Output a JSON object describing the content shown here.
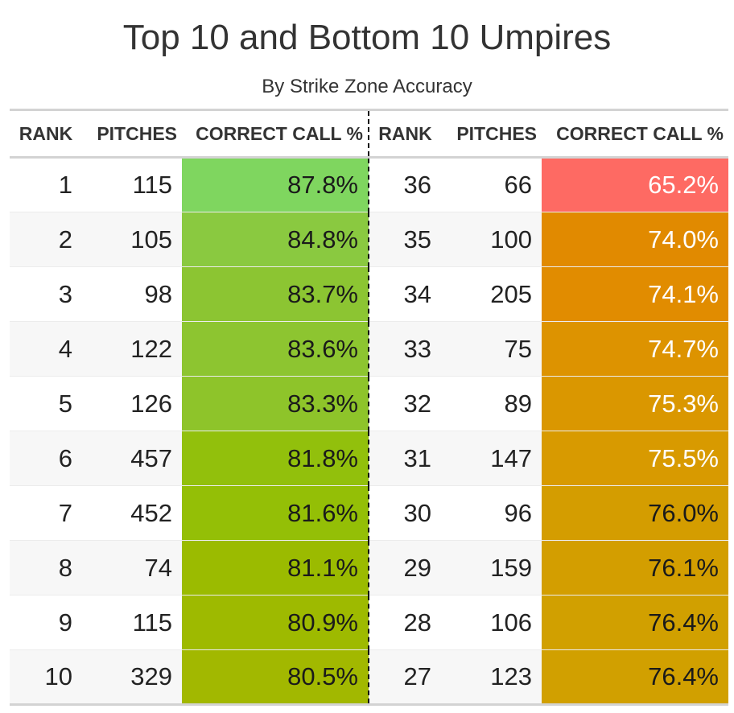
{
  "chart_data": {
    "type": "table",
    "title": "Top 10 and Bottom 10 Umpires",
    "subtitle": "By Strike Zone Accuracy",
    "columns": [
      "RANK",
      "PITCHES",
      "CORRECT CALL %",
      "RANK",
      "PITCHES",
      "CORRECT CALL %"
    ],
    "rows": [
      {
        "top": {
          "rank": "1",
          "pitches": "115",
          "pct": "87.8%",
          "value": 87.8,
          "bg": "#7fd65f",
          "fg": "#1a1a1a"
        },
        "bottom": {
          "rank": "36",
          "pitches": "66",
          "pct": "65.2%",
          "value": 65.2,
          "bg": "#fe6a63",
          "fg": "#ffffff"
        }
      },
      {
        "top": {
          "rank": "2",
          "pitches": "105",
          "pct": "84.8%",
          "value": 84.8,
          "bg": "#8ac940",
          "fg": "#1a1a1a"
        },
        "bottom": {
          "rank": "35",
          "pitches": "100",
          "pct": "74.0%",
          "value": 74.0,
          "bg": "#e18a00",
          "fg": "#ffffff"
        }
      },
      {
        "top": {
          "rank": "3",
          "pitches": "98",
          "pct": "83.7%",
          "value": 83.7,
          "bg": "#8cc532",
          "fg": "#1a1a1a"
        },
        "bottom": {
          "rank": "34",
          "pitches": "205",
          "pct": "74.1%",
          "value": 74.1,
          "bg": "#e18c00",
          "fg": "#ffffff"
        }
      },
      {
        "top": {
          "rank": "4",
          "pitches": "122",
          "pct": "83.6%",
          "value": 83.6,
          "bg": "#8dc530",
          "fg": "#1a1a1a"
        },
        "bottom": {
          "rank": "33",
          "pitches": "75",
          "pct": "74.7%",
          "value": 74.7,
          "bg": "#dd9300",
          "fg": "#ffffff"
        }
      },
      {
        "top": {
          "rank": "5",
          "pitches": "126",
          "pct": "83.3%",
          "value": 83.3,
          "bg": "#8ec42a",
          "fg": "#1a1a1a"
        },
        "bottom": {
          "rank": "32",
          "pitches": "89",
          "pct": "75.3%",
          "value": 75.3,
          "bg": "#da9700",
          "fg": "#ffffff"
        }
      },
      {
        "top": {
          "rank": "6",
          "pitches": "457",
          "pct": "81.8%",
          "value": 81.8,
          "bg": "#92c00c",
          "fg": "#1a1a1a"
        },
        "bottom": {
          "rank": "31",
          "pitches": "147",
          "pct": "75.5%",
          "value": 75.5,
          "bg": "#d89a00",
          "fg": "#ffffff"
        }
      },
      {
        "top": {
          "rank": "7",
          "pitches": "452",
          "pct": "81.6%",
          "value": 81.6,
          "bg": "#94bf06",
          "fg": "#1a1a1a"
        },
        "bottom": {
          "rank": "30",
          "pitches": "96",
          "pct": "76.0%",
          "value": 76.0,
          "bg": "#d49d00",
          "fg": "#1a1a1a"
        }
      },
      {
        "top": {
          "rank": "8",
          "pitches": "74",
          "pct": "81.1%",
          "value": 81.1,
          "bg": "#9bbb00",
          "fg": "#1a1a1a"
        },
        "bottom": {
          "rank": "29",
          "pitches": "159",
          "pct": "76.1%",
          "value": 76.1,
          "bg": "#d39e00",
          "fg": "#1a1a1a"
        }
      },
      {
        "top": {
          "rank": "9",
          "pitches": "115",
          "pct": "80.9%",
          "value": 80.9,
          "bg": "#9eba00",
          "fg": "#1a1a1a"
        },
        "bottom": {
          "rank": "28",
          "pitches": "106",
          "pct": "76.4%",
          "value": 76.4,
          "bg": "#d1a000",
          "fg": "#1a1a1a"
        }
      },
      {
        "top": {
          "rank": "10",
          "pitches": "329",
          "pct": "80.5%",
          "value": 80.5,
          "bg": "#a2b800",
          "fg": "#1a1a1a"
        },
        "bottom": {
          "rank": "27",
          "pitches": "123",
          "pct": "76.4%",
          "value": 76.4,
          "bg": "#d1a000",
          "fg": "#1a1a1a"
        }
      }
    ]
  }
}
